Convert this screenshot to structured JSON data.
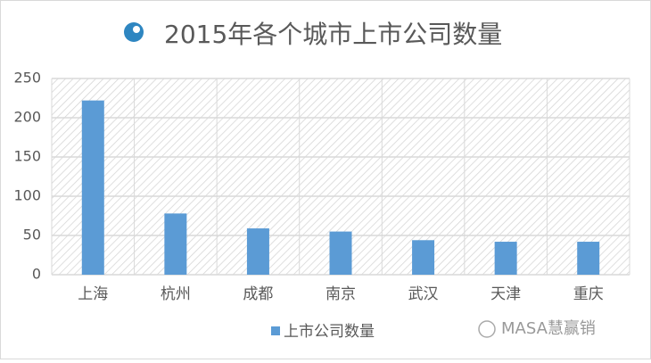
{
  "chart_data": {
    "type": "bar",
    "title": "2015年各个城市上市公司数量",
    "categories": [
      "上海",
      "杭州",
      "成都",
      "南京",
      "武汉",
      "天津",
      "重庆"
    ],
    "series": [
      {
        "name": "上市公司数量",
        "color": "#5b9bd5",
        "values": [
          222,
          78,
          59,
          55,
          44,
          42,
          42
        ]
      }
    ],
    "ylim": [
      0,
      250
    ],
    "yticks": [
      0,
      50,
      100,
      150,
      200,
      250
    ],
    "grid": true,
    "legend": "bottom"
  },
  "watermark": "MASA慧赢销"
}
